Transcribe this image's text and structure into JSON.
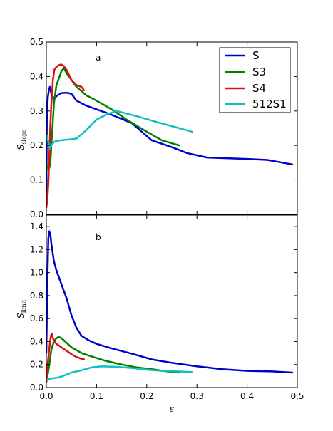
{
  "chart_data": {
    "type": "line",
    "shared_x": true,
    "xlabel": "ε",
    "xlim": [
      0,
      0.5
    ],
    "xticks": [
      0.0,
      0.1,
      0.2,
      0.3,
      0.4,
      0.5
    ],
    "xtick_labels": [
      "0.0",
      "0.1",
      "0.2",
      "0.3",
      "0.4",
      "0.5"
    ],
    "legend": {
      "placement": "top-right of upper panel",
      "entries": [
        "S",
        "S3",
        "S4",
        "512S1"
      ]
    },
    "colors": {
      "S": "#0000cc",
      "S3": "#007f00",
      "S4": "#e01010",
      "512S1": "#10c0c0"
    },
    "panels": [
      {
        "id": "a",
        "panel_label": "a",
        "ylabel_main": "S",
        "ylabel_sub": "slope",
        "ylim": [
          0,
          0.5
        ],
        "yticks": [
          0.0,
          0.1,
          0.2,
          0.3,
          0.4,
          0.5
        ],
        "ytick_labels": [
          "0.0",
          "0.1",
          "0.2",
          "0.3",
          "0.4",
          "0.5"
        ],
        "series": [
          {
            "name": "S",
            "x": [
              0.0,
              0.001,
              0.003,
              0.005,
              0.007,
              0.01,
              0.015,
              0.02,
              0.03,
              0.04,
              0.05,
              0.06,
              0.08,
              0.1,
              0.13,
              0.17,
              0.21,
              0.25,
              0.28,
              0.32,
              0.36,
              0.4,
              0.44,
              0.49
            ],
            "y": [
              0.04,
              0.27,
              0.34,
              0.36,
              0.37,
              0.35,
              0.335,
              0.343,
              0.352,
              0.353,
              0.35,
              0.33,
              0.315,
              0.305,
              0.289,
              0.265,
              0.215,
              0.195,
              0.178,
              0.165,
              0.163,
              0.161,
              0.158,
              0.145
            ]
          },
          {
            "name": "S3",
            "x": [
              0.0,
              0.002,
              0.004,
              0.006,
              0.008,
              0.01,
              0.015,
              0.02,
              0.03,
              0.035,
              0.04,
              0.05,
              0.06,
              0.08,
              0.1,
              0.13,
              0.16,
              0.2,
              0.23,
              0.265
            ],
            "y": [
              0.13,
              0.14,
              0.133,
              0.135,
              0.15,
              0.2,
              0.32,
              0.375,
              0.415,
              0.425,
              0.41,
              0.39,
              0.37,
              0.345,
              0.33,
              0.305,
              0.275,
              0.24,
              0.215,
              0.2
            ]
          },
          {
            "name": "S4",
            "x": [
              0.0,
              0.002,
              0.004,
              0.006,
              0.008,
              0.01,
              0.013,
              0.016,
              0.02,
              0.025,
              0.03,
              0.035,
              0.04,
              0.05,
              0.06,
              0.07,
              0.075
            ],
            "y": [
              0.02,
              0.04,
              0.09,
              0.17,
              0.26,
              0.32,
              0.39,
              0.42,
              0.428,
              0.433,
              0.435,
              0.43,
              0.42,
              0.39,
              0.375,
              0.37,
              0.36
            ]
          },
          {
            "name": "512S1",
            "x": [
              0.0,
              0.002,
              0.004,
              0.006,
              0.008,
              0.01,
              0.015,
              0.02,
              0.03,
              0.05,
              0.06,
              0.08,
              0.1,
              0.12,
              0.14,
              0.18,
              0.22,
              0.26,
              0.29
            ],
            "y": [
              0.23,
              0.22,
              0.21,
              0.2,
              0.19,
              0.2,
              0.21,
              0.213,
              0.215,
              0.218,
              0.22,
              0.245,
              0.275,
              0.29,
              0.3,
              0.285,
              0.268,
              0.252,
              0.24
            ]
          }
        ]
      },
      {
        "id": "b",
        "panel_label": "b",
        "ylabel_main": "S",
        "ylabel_sub": "limit",
        "ylim": [
          0,
          1.5
        ],
        "yticks": [
          0.0,
          0.2,
          0.4,
          0.6,
          0.8,
          1.0,
          1.2,
          1.4
        ],
        "ytick_labels": [
          "0.0",
          "0.2",
          "0.4",
          "0.6",
          "0.8",
          "1.0",
          "1.2",
          "1.4"
        ],
        "series": [
          {
            "name": "S",
            "x": [
              0.0,
              0.002,
              0.004,
              0.006,
              0.008,
              0.01,
              0.015,
              0.02,
              0.03,
              0.04,
              0.05,
              0.06,
              0.07,
              0.085,
              0.1,
              0.13,
              0.17,
              0.21,
              0.25,
              0.3,
              0.35,
              0.4,
              0.45,
              0.49
            ],
            "y": [
              0.3,
              0.9,
              1.3,
              1.36,
              1.34,
              1.25,
              1.1,
              1.02,
              0.9,
              0.78,
              0.63,
              0.52,
              0.45,
              0.41,
              0.38,
              0.34,
              0.295,
              0.245,
              0.215,
              0.185,
              0.16,
              0.145,
              0.14,
              0.13
            ]
          },
          {
            "name": "S3",
            "x": [
              0.0,
              0.003,
              0.006,
              0.01,
              0.015,
              0.02,
              0.025,
              0.03,
              0.04,
              0.05,
              0.07,
              0.09,
              0.12,
              0.15,
              0.18,
              0.21,
              0.24,
              0.265
            ],
            "y": [
              0.05,
              0.12,
              0.2,
              0.33,
              0.4,
              0.43,
              0.44,
              0.43,
              0.39,
              0.35,
              0.3,
              0.27,
              0.23,
              0.2,
              0.175,
              0.16,
              0.14,
              0.13
            ]
          },
          {
            "name": "S4",
            "x": [
              0.0,
              0.002,
              0.004,
              0.007,
              0.009,
              0.011,
              0.013,
              0.016,
              0.02,
              0.03,
              0.04,
              0.05,
              0.06,
              0.07,
              0.075
            ],
            "y": [
              0.05,
              0.18,
              0.26,
              0.38,
              0.45,
              0.47,
              0.43,
              0.4,
              0.38,
              0.35,
              0.32,
              0.29,
              0.265,
              0.25,
              0.245
            ]
          },
          {
            "name": "512S1",
            "x": [
              0.0,
              0.005,
              0.01,
              0.02,
              0.03,
              0.05,
              0.07,
              0.09,
              0.11,
              0.14,
              0.17,
              0.2,
              0.23,
              0.26,
              0.29
            ],
            "y": [
              0.07,
              0.075,
              0.078,
              0.085,
              0.095,
              0.13,
              0.15,
              0.175,
              0.185,
              0.18,
              0.17,
              0.155,
              0.145,
              0.14,
              0.135
            ]
          }
        ]
      }
    ]
  }
}
